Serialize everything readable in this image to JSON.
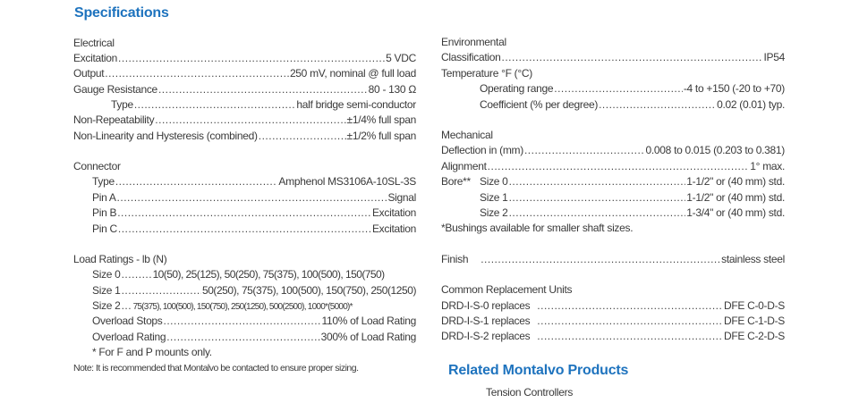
{
  "specifications_title": "Specifications",
  "electrical": {
    "title": "Electrical",
    "excitation": {
      "label": "Excitation",
      "value": "5 VDC"
    },
    "output": {
      "label": "Output",
      "value": "250 mV, nominal @ full load"
    },
    "gauge_resistance": {
      "label": "Gauge  Resistance",
      "value": "80 - 130 Ω"
    },
    "type": {
      "label": "Type",
      "value": "half bridge semi-conductor"
    },
    "non_repeatability": {
      "label": "Non-Repeatability",
      "value": "±1/4% full span"
    },
    "non_linearity": {
      "label": "Non-Linearity and Hysteresis (combined)",
      "value": "±1/2% full span"
    }
  },
  "connector": {
    "title": "Connector",
    "type": {
      "label": "Type",
      "value": "Amphenol MS3106A-10SL-3S"
    },
    "pin_a": {
      "label": "Pin A",
      "value": "Signal"
    },
    "pin_b": {
      "label": "Pin B",
      "value": "Excitation"
    },
    "pin_c": {
      "label": "Pin C",
      "value": "Excitation"
    }
  },
  "load_ratings": {
    "title": "Load Ratings - lb (N)",
    "size0": {
      "label": "Size 0",
      "value": "10(50), 25(125), 50(250), 75(375), 100(500), 150(750)"
    },
    "size1": {
      "label": "Size 1",
      "value": "50(250), 75(375), 100(500), 150(750), 250(1250)"
    },
    "size2": {
      "label": "Size 2",
      "value": "75(375), 100(500), 150(750), 250(1250), 500(2500), 1000*(5000)*"
    },
    "overload_stops": {
      "label": "Overload Stops",
      "value": "110% of Load Rating"
    },
    "overload_rating": {
      "label": "Overload Rating",
      "value": "300% of Load Rating"
    },
    "footnote": "* For F and P mounts only.",
    "note": "Note: It is recommended that Montalvo be contacted to ensure proper sizing."
  },
  "environmental": {
    "title": "Environmental",
    "classification": {
      "label": "Classification",
      "value": "IP54"
    },
    "temperature_title": "Temperature °F (°C)",
    "operating_range": {
      "label": "Operating range",
      "value": "-4 to +150 (-20 to +70)"
    },
    "coefficient": {
      "label": "Coefficient (% per degree)",
      "value": "0.02 (0.01) typ."
    }
  },
  "mechanical": {
    "title": "Mechanical",
    "deflection": {
      "label": "Deflection in (mm)",
      "value": "0.008 to 0.015 (0.203 to 0.381)"
    },
    "alignment": {
      "label": "Alignment",
      "value": "1° max."
    },
    "bore_label": "Bore**",
    "bore_size0": {
      "label": "Size 0",
      "value": "1-1/2\" or (40 mm) std."
    },
    "bore_size1": {
      "label": "Size 1",
      "value": "1-1/2\" or (40 mm) std."
    },
    "bore_size2": {
      "label": "Size 2",
      "value": "1-3/4\" or (40 mm) std."
    },
    "bushings_note": "*Bushings available for smaller shaft sizes."
  },
  "finish": {
    "label": "Finish",
    "value": "stainless steel"
  },
  "replacement": {
    "title": "Common Replacement Units",
    "r0": {
      "label": "DRD-I-S-0 replaces",
      "value": "DFE C-0-D-S"
    },
    "r1": {
      "label": "DRD-I-S-1 replaces",
      "value": "DFE C-1-D-S"
    },
    "r2": {
      "label": "DRD-I-S-2 replaces",
      "value": "DFE C-2-D-S"
    }
  },
  "related_title": "Related Montalvo Products",
  "related_item": "Tension Controllers"
}
